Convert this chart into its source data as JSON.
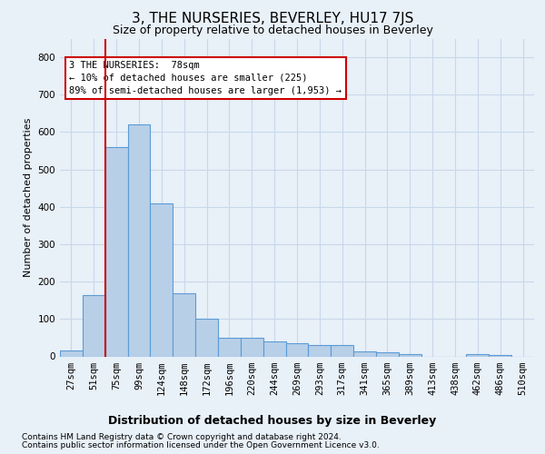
{
  "title": "3, THE NURSERIES, BEVERLEY, HU17 7JS",
  "subtitle": "Size of property relative to detached houses in Beverley",
  "xlabel": "Distribution of detached houses by size in Beverley",
  "ylabel": "Number of detached properties",
  "footnote1": "Contains HM Land Registry data © Crown copyright and database right 2024.",
  "footnote2": "Contains public sector information licensed under the Open Government Licence v3.0.",
  "bar_labels": [
    "27sqm",
    "51sqm",
    "75sqm",
    "99sqm",
    "124sqm",
    "148sqm",
    "172sqm",
    "196sqm",
    "220sqm",
    "244sqm",
    "269sqm",
    "293sqm",
    "317sqm",
    "341sqm",
    "365sqm",
    "389sqm",
    "413sqm",
    "438sqm",
    "462sqm",
    "486sqm",
    "510sqm"
  ],
  "bar_values": [
    15,
    165,
    560,
    620,
    410,
    170,
    100,
    50,
    50,
    40,
    35,
    30,
    30,
    13,
    10,
    6,
    0,
    0,
    6,
    3,
    0
  ],
  "bar_color": "#b8cfe8",
  "bar_edge_color": "#5b9bd5",
  "vline_color": "#cc0000",
  "vline_x_index": 2,
  "annotation_line1": "3 THE NURSERIES:  78sqm",
  "annotation_line2": "← 10% of detached houses are smaller (225)",
  "annotation_line3": "89% of semi-detached houses are larger (1,953) →",
  "annotation_box_facecolor": "#ffffff",
  "annotation_box_edgecolor": "#cc0000",
  "ylim": [
    0,
    850
  ],
  "yticks": [
    0,
    100,
    200,
    300,
    400,
    500,
    600,
    700,
    800
  ],
  "grid_color": "#c8d8ea",
  "bg_color": "#e8f0f8",
  "title_fontsize": 11,
  "subtitle_fontsize": 9,
  "xlabel_fontsize": 9,
  "ylabel_fontsize": 8,
  "tick_fontsize": 7.5,
  "footnote_fontsize": 6.5,
  "bar_width": 1.0
}
